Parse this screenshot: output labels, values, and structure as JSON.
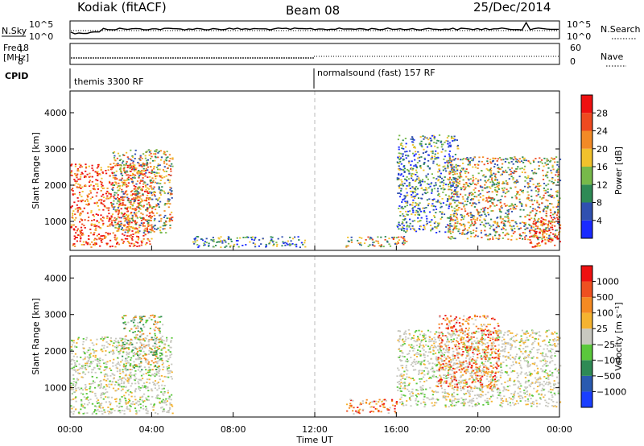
{
  "header": {
    "station": "Kodiak (fitACF)",
    "beam": "Beam 08",
    "date": "25/Dec/2014"
  },
  "top_strips": {
    "nsky_label": "N.Sky",
    "nsky_ticks": [
      "10^5",
      "10^0"
    ],
    "nsearch_label": "N.Search",
    "nsearch_ticks": [
      "10^5",
      "10^0"
    ],
    "freq_label": "Freq.",
    "freq_unit": "[MHz]",
    "freq_ticks": [
      "18",
      "8"
    ],
    "nave_label": "Nave",
    "nave_ticks": [
      "60",
      "0"
    ],
    "cpid_label": "CPID",
    "cpid_segments": [
      "themis 3300 RF",
      "normalsound (fast) 157 RF"
    ]
  },
  "chart_data": [
    {
      "type": "heatmap",
      "name": "power-panel",
      "ylabel": "Slant Range [km]",
      "ylim": [
        200,
        4600
      ],
      "yticks": [
        "1000",
        "2000",
        "3000",
        "4000"
      ],
      "colorbar_label": "Power [dB]",
      "colorbar_ticks": [
        "4",
        "8",
        "12",
        "16",
        "20",
        "24",
        "28"
      ],
      "colorbar_colors": [
        "#1a2aff",
        "#3050b0",
        "#2e8a55",
        "#77b94a",
        "#f1c12c",
        "#f28a26",
        "#ee4a20",
        "#ee1010"
      ],
      "echo_regions": [
        {
          "t": [
            0.0,
            4.0
          ],
          "range": [
            300,
            2600
          ],
          "level": "high"
        },
        {
          "t": [
            2.0,
            5.0
          ],
          "range": [
            700,
            3000
          ],
          "level": "mid"
        },
        {
          "t": [
            6.0,
            11.5
          ],
          "range": [
            300,
            600
          ],
          "level": "low"
        },
        {
          "t": [
            13.5,
            16.5
          ],
          "range": [
            300,
            600
          ],
          "level": "mid"
        },
        {
          "t": [
            16.0,
            19.0
          ],
          "range": [
            700,
            3400
          ],
          "level": "low"
        },
        {
          "t": [
            18.5,
            24.0
          ],
          "range": [
            500,
            2800
          ],
          "level": "mid"
        },
        {
          "t": [
            22.5,
            24.0
          ],
          "range": [
            300,
            1200
          ],
          "level": "high"
        }
      ]
    },
    {
      "type": "heatmap",
      "name": "velocity-panel",
      "ylabel": "Slant Range [km]",
      "ylim": [
        200,
        4600
      ],
      "yticks": [
        "1000",
        "2000",
        "3000",
        "4000"
      ],
      "xticks": [
        "00:00",
        "04:00",
        "08:00",
        "12:00",
        "16:00",
        "20:00",
        "00:00"
      ],
      "xlabel": "Time UT",
      "colorbar_label": "Velocity [m s⁻¹]",
      "colorbar_ticks": [
        "1000",
        "500",
        "100",
        "25",
        "−25",
        "−100",
        "−500",
        "−1000"
      ],
      "colorbar_colors": [
        "#1a3eff",
        "#2a5ab0",
        "#2e8a55",
        "#5ac83c",
        "#c8c8c0",
        "#f5b330",
        "#f58a22",
        "#ee5020",
        "#ee1010"
      ],
      "echo_regions": [
        {
          "t": [
            0.0,
            5.0
          ],
          "range": [
            300,
            2400
          ],
          "level": "gray"
        },
        {
          "t": [
            2.5,
            4.5
          ],
          "range": [
            1500,
            3000
          ],
          "level": "green"
        },
        {
          "t": [
            13.5,
            16.0
          ],
          "range": [
            300,
            700
          ],
          "level": "orange"
        },
        {
          "t": [
            16.0,
            24.0
          ],
          "range": [
            500,
            2600
          ],
          "level": "gray"
        },
        {
          "t": [
            18.0,
            21.0
          ],
          "range": [
            1000,
            3000
          ],
          "level": "orange"
        }
      ]
    }
  ]
}
